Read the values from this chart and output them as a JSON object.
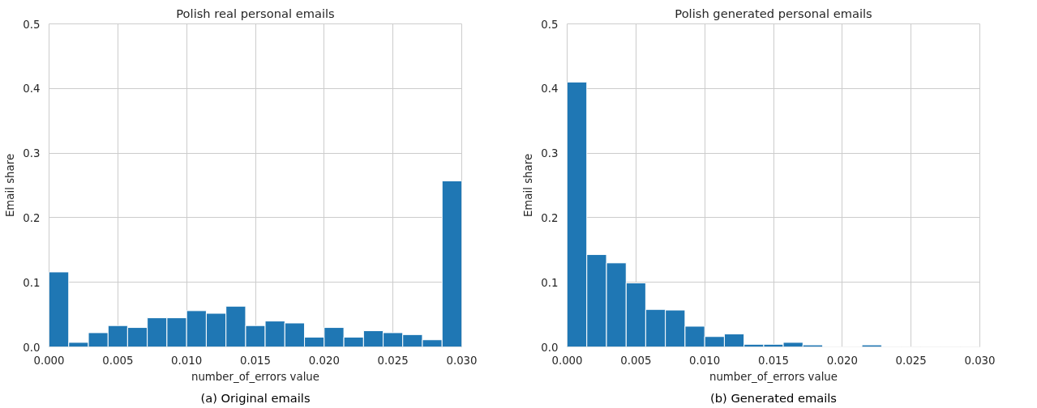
{
  "chart_data": [
    {
      "type": "histogram",
      "title": "Polish real personal emails",
      "xlabel": "number_of_errors value",
      "ylabel": "Email share",
      "color": "#1f77b4",
      "bins": [
        0,
        0.00143,
        0.00286,
        0.00429,
        0.00571,
        0.00714,
        0.00857,
        0.01,
        0.01143,
        0.01286,
        0.01429,
        0.01571,
        0.01714,
        0.01857,
        0.02,
        0.02143,
        0.02286,
        0.02429,
        0.02571,
        0.02714,
        0.02857,
        0.03
      ],
      "values": [
        0.116,
        0.007,
        0.022,
        0.033,
        0.03,
        0.045,
        0.045,
        0.056,
        0.052,
        0.063,
        0.033,
        0.04,
        0.037,
        0.015,
        0.03,
        0.015,
        0.025,
        0.022,
        0.019,
        0.011,
        0.257
      ],
      "xlim": [
        0,
        0.03
      ],
      "xticks": [
        {
          "value": 0,
          "label": "0.000"
        },
        0.005,
        {
          "value": 0.01,
          "label": "0.010"
        },
        0.015,
        {
          "value": 0.02,
          "label": "0.020"
        },
        0.025,
        {
          "value": 0.03,
          "label": "0.030"
        }
      ],
      "ylim": [
        0,
        0.5
      ],
      "yticks": [
        {
          "value": 0,
          "label": "0.0"
        },
        0.1,
        0.2,
        0.3,
        0.4,
        0.5
      ],
      "grid": true,
      "annotations": [
        "(a) Original emails"
      ]
    },
    {
      "type": "histogram",
      "title": "Polish generated personal emails",
      "xlabel": "number_of_errors value",
      "ylabel": "Email share",
      "color": "#1f77b4",
      "bins": [
        0,
        0.00143,
        0.00286,
        0.00429,
        0.00571,
        0.00714,
        0.00857,
        0.01,
        0.01143,
        0.01286,
        0.01429,
        0.01571,
        0.01714,
        0.01857,
        0.02,
        0.02143,
        0.02286,
        0.02429,
        0.02571,
        0.02714,
        0.02857,
        0.03
      ],
      "values": [
        0.41,
        0.143,
        0.13,
        0.099,
        0.058,
        0.057,
        0.032,
        0.016,
        0.02,
        0.004,
        0.004,
        0.007,
        0.003,
        0,
        0,
        0.003,
        0,
        0,
        0,
        0,
        0
      ],
      "xlim": [
        0,
        0.03
      ],
      "xticks": [
        {
          "value": 0,
          "label": "0.000"
        },
        0.005,
        {
          "value": 0.01,
          "label": "0.010"
        },
        0.015,
        {
          "value": 0.02,
          "label": "0.020"
        },
        0.025,
        {
          "value": 0.03,
          "label": "0.030"
        }
      ],
      "ylim": [
        0,
        0.5
      ],
      "yticks": [
        {
          "value": 0,
          "label": "0.0"
        },
        0.1,
        0.2,
        0.3,
        0.4,
        0.5
      ],
      "grid": true,
      "annotations": [
        "(b) Generated emails"
      ]
    }
  ]
}
